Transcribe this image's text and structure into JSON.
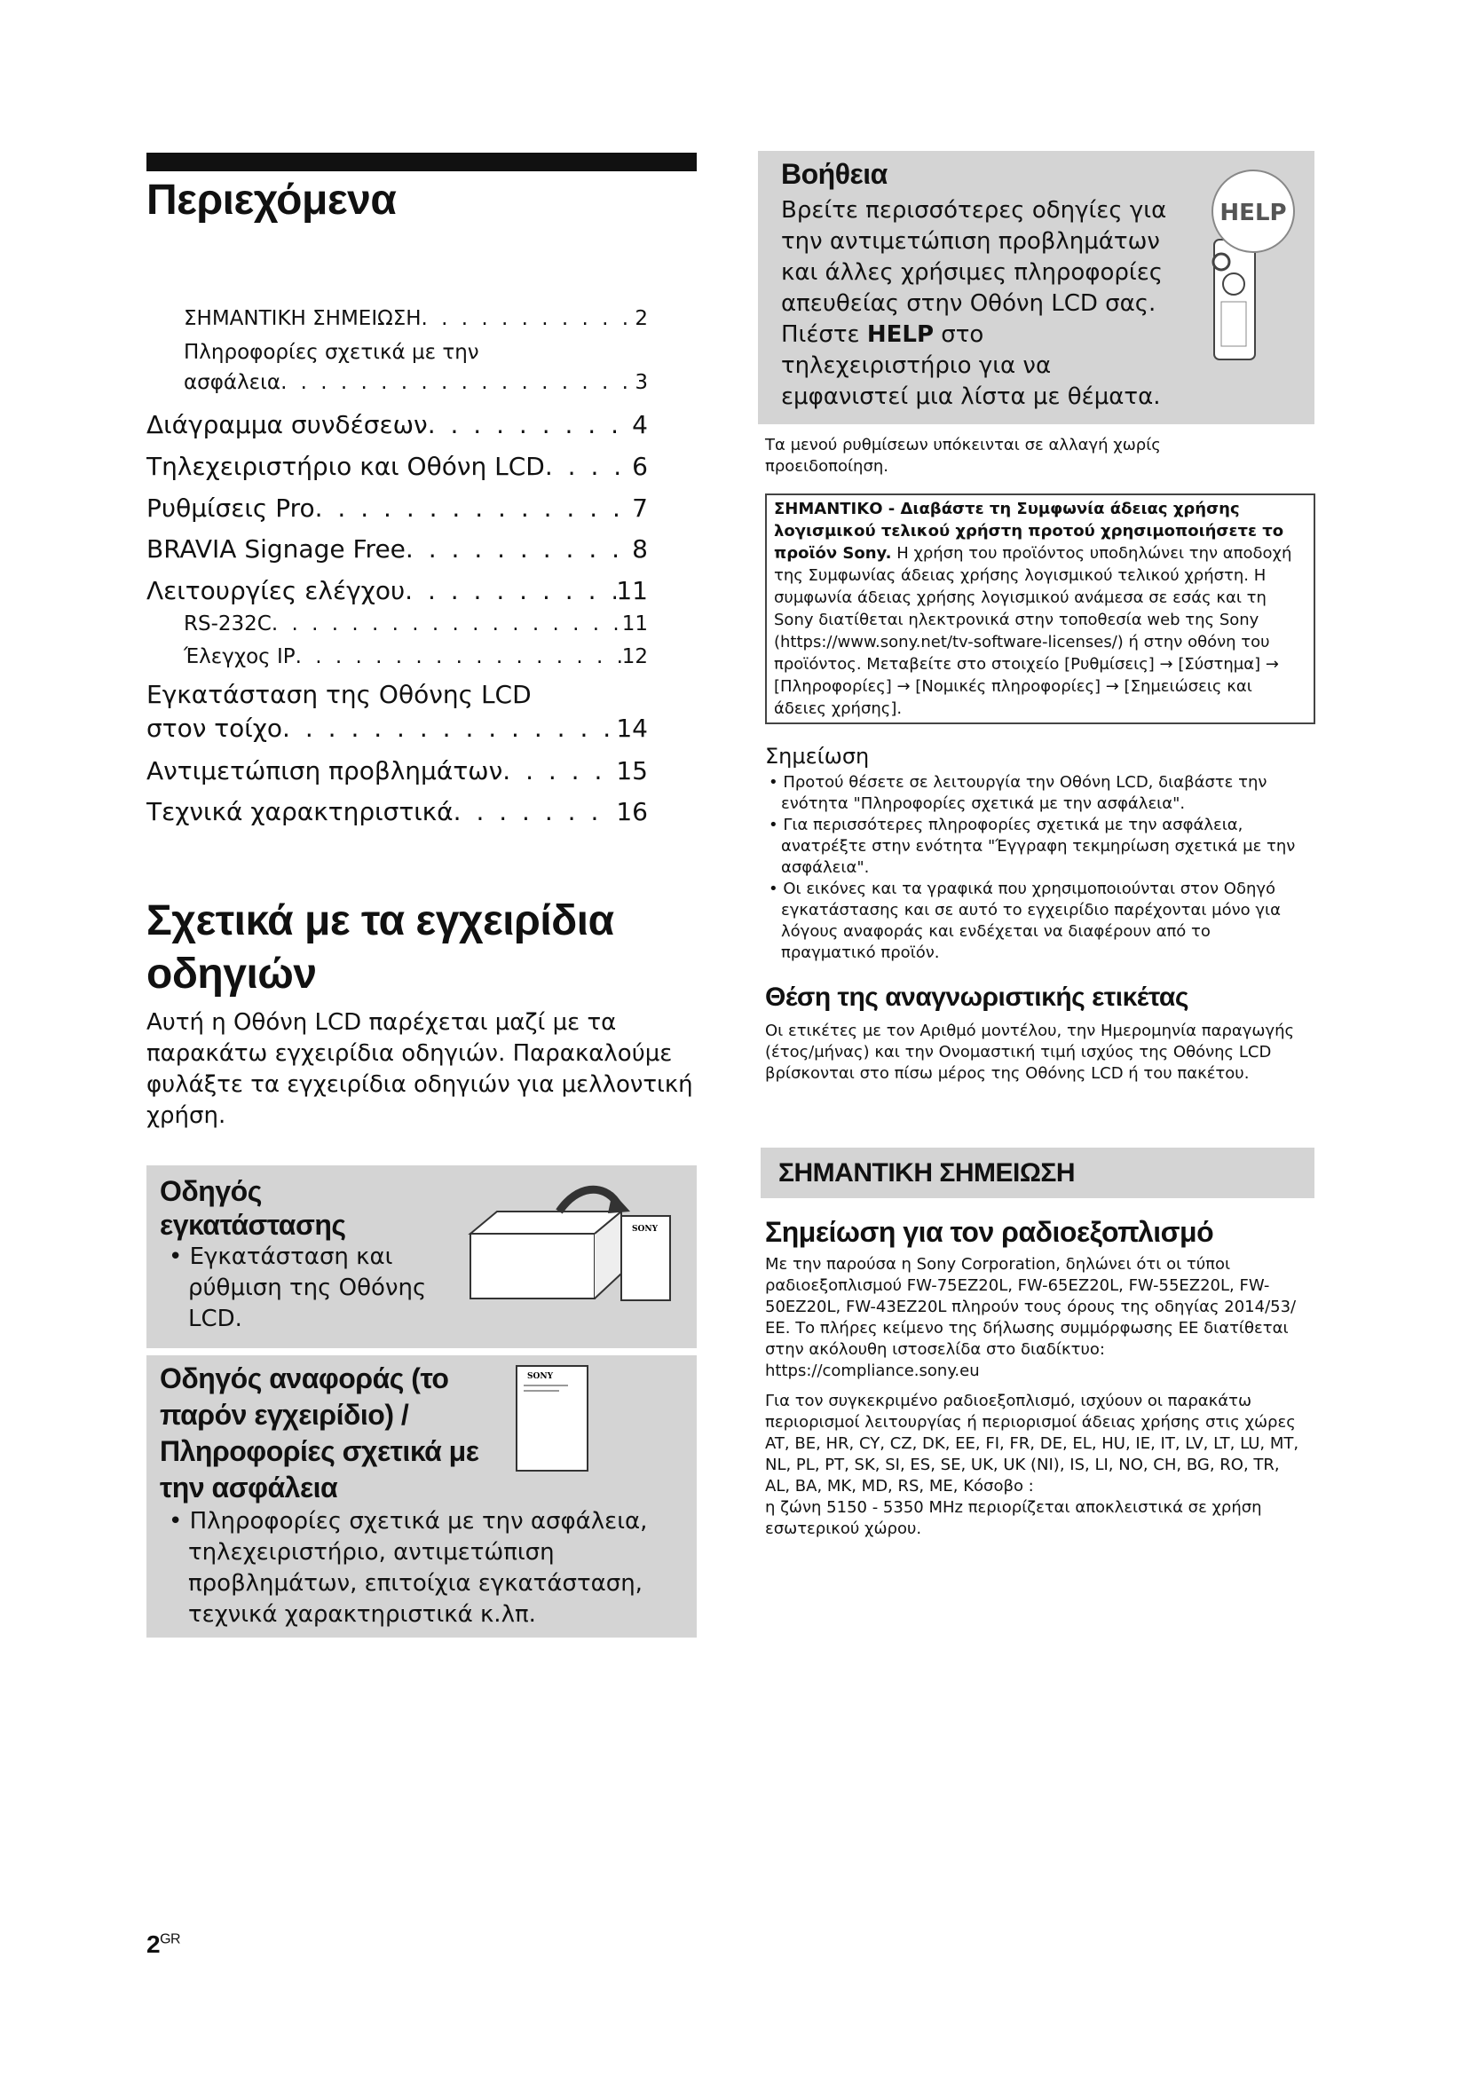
{
  "contents": {
    "title": "Περιεχόμενα",
    "items": [
      {
        "label": "ΣΗΜΑΝΤΙΚΗ ΣΗΜΕΙΩΣΗ",
        "page": "2",
        "level": "small"
      },
      {
        "label": "Πληροφορίες σχετικά με την",
        "page": "",
        "level": "small"
      },
      {
        "label": "ασφάλεια",
        "page": "3",
        "level": "small"
      },
      {
        "label": "Διάγραμμα συνδέσεων",
        "page": "4",
        "level": "big"
      },
      {
        "label": "Τηλεχειριστήριο και Οθόνη LCD",
        "page": "6",
        "level": "big"
      },
      {
        "label": "Ρυθμίσεις Pro",
        "page": "7",
        "level": "big"
      },
      {
        "label": "BRAVIA Signage Free",
        "page": "8",
        "level": "big"
      },
      {
        "label": "Λειτουργίες ελέγχου",
        "page": "11",
        "level": "big"
      },
      {
        "label": "RS-232C",
        "page": "11",
        "level": "small"
      },
      {
        "label": "Έλεγχος IP",
        "page": "12",
        "level": "small"
      },
      {
        "label": "Εγκατάσταση της Οθόνης LCD",
        "page": "",
        "level": "big"
      },
      {
        "label": "στον τοίχο",
        "page": "14",
        "level": "big"
      },
      {
        "label": "Αντιμετώπιση προβλημάτων",
        "page": "15",
        "level": "big"
      },
      {
        "label": "Τεχνικά χαρακτηριστικά",
        "page": "16",
        "level": "big"
      }
    ]
  },
  "manuals": {
    "title_line1": "Σχετικά με τα εγχειρίδια",
    "title_line2": "οδηγιών",
    "intro": "Αυτή η Οθόνη LCD παρέχεται μαζί με τα παρακάτω εγχειρίδια οδηγιών. Παρακαλούμε φυλάξτε τα εγχειρίδια οδηγιών για μελλοντική χρήση.",
    "setup_guide": {
      "title": "Οδηγός εγκατάστασης",
      "bullet": "• Εγκατάσταση και ρύθμιση της Οθόνης LCD.",
      "icon": "box-and-manual-icon",
      "logo_text": "SONY"
    },
    "reference_guide": {
      "title": "Οδηγός αναφοράς (το παρόν εγχειρίδιο) / Πληροφορίες σχετικά με την ασφάλεια",
      "bullet": "• Πληροφορίες σχετικά με την ασφάλεια, τηλεχειριστήριο, αντιμετώπιση προβλημάτων, επιτοίχια εγκατάσταση, τεχνικά χαρακτηριστικά κ.λπ.",
      "icon": "manual-booklet-icon",
      "logo_text": "SONY"
    }
  },
  "help": {
    "title": "Βοήθεια",
    "text_before": "Βρείτε περισσότερες οδηγίες για την αντιμετώπιση προβλημάτων και άλλες χρήσιμες πληροφορίες απευθείας στην Οθόνη LCD σας. Πιέστε ",
    "bold": "HELP",
    "text_after": " στο τηλεχειριστήριο για να εμφανιστεί μια λίστα με θέματα.",
    "badge": "HELP",
    "icon": "remote-control-icon"
  },
  "menu_note": "Τα μενού ρυθμίσεων υπόκεινται σε αλλαγή χωρίς προειδοποίηση.",
  "license": {
    "bold": "ΣΗΜΑΝΤΙΚΟ - Διαβάστε τη Συμφωνία άδειας χρήσης λογισμικού τελικού χρήστη προτού χρησιμοποιήσετε το προϊόν Sony.",
    "text": " Η χρήση του προϊόντος υποδηλώνει την αποδοχή της Συμφωνίας άδειας χρήσης λογισμικού τελικού χρήστη. Η συμφωνία άδειας χρήσης λογισμικού ανάμεσα σε εσάς και τη Sony διατίθεται ηλεκτρονικά στην τοποθεσία web της Sony (https://www.sony.net/tv-software-licenses/) ή στην οθόνη του προϊόντος. Μεταβείτε στο στοιχείο [Ρυθμίσεις] → [Σύστημα] → [Πληροφορίες] → [Νομικές πληροφορίες] → [Σημειώσεις και άδειες χρήσης]."
  },
  "note": {
    "title": "Σημείωση",
    "bullets": [
      "• Προτού θέσετε σε λειτουργία την Οθόνη LCD, διαβάστε την ενότητα \"Πληροφορίες σχετικά με την ασφάλεια\".",
      "• Για περισσότερες πληροφορίες σχετικά με την ασφάλεια, ανατρέξτε στην ενότητα \"Έγγραφη τεκμηρίωση σχετικά με την ασφάλεια\".",
      "• Οι εικόνες και τα γραφικά που χρησιμοποιούνται στον Οδηγό εγκατάστασης και σε αυτό το εγχειρίδιο παρέχονται μόνο για λόγους αναφοράς και ενδέχεται να διαφέρουν από το πραγματικό προϊόν."
    ]
  },
  "label_location": {
    "title": "Θέση της αναγνωριστικής ετικέτας",
    "text": "Οι ετικέτες με τον Αριθμό μοντέλου, την Ημερομηνία παραγωγής (έτος/μήνας) και την Ονομαστική τιμή ισχύος της Οθόνης LCD βρίσκονται στο πίσω μέρος της Οθόνης LCD ή του πακέτου."
  },
  "important_notice": {
    "banner": "ΣΗΜΑΝΤΙΚΗ ΣΗΜΕΙΩΣΗ",
    "title": "Σημείωση για τον ραδιοεξοπλισμό",
    "para1": "Με την παρούσα η Sony Corporation, δηλώνει ότι οι τύποι ραδιοεξοπλισμού FW-75EZ20L, FW-65EZ20L, FW-55EZ20L, FW-50EZ20L, FW-43EZ20L πληρούν τους όρους της οδηγίας 2014/53/ΕΕ. Το πλήρες κείμενο της δήλωσης συμμόρφωσης ΕΕ διατίθεται στην ακόλουθη ιστοσελίδα στο διαδίκτυο: https://compliance.sony.eu",
    "para2": "Για τον συγκεκριμένο ραδιοεξοπλισμό, ισχύουν οι παρακάτω περιορισμοί λειτουργίας ή περιορισμοί άδειας χρήσης στις χώρες AT, BE, HR, CY, CZ, DK, EE, FI, FR, DE, EL, HU, IE, IT, LV, LT, LU, MT, NL, PL, PT, SK, SI, ES, SE, UK, UK (NI), IS, LI, NO, CH, BG, RO, TR, AL, BA, MK, MD, RS, ME, Κόσοβο :",
    "para3": "η ζώνη 5150 - 5350 MHz περιορίζεται αποκλειστικά σε χρήση εσωτερικού χώρου."
  },
  "footer": {
    "page": "2",
    "suffix": "GR"
  }
}
